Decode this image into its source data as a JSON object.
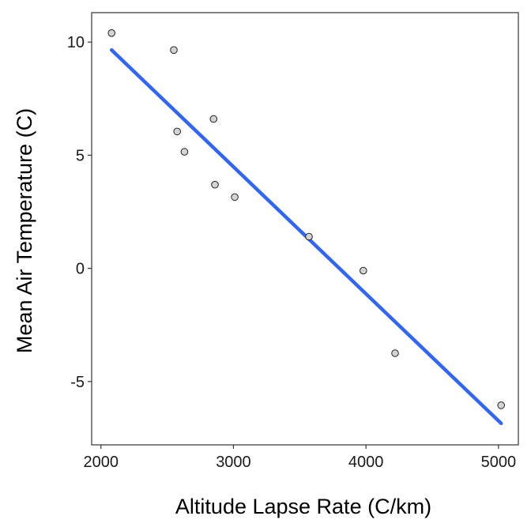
{
  "chart_data": {
    "type": "scatter",
    "title": "",
    "xlabel": "Altitude Lapse Rate (C/km)",
    "ylabel": "Mean Air Temperature (C)",
    "xlim": [
      1930,
      5150
    ],
    "ylim": [
      -7.8,
      11.3
    ],
    "x_ticks": [
      2000,
      3000,
      4000,
      5000
    ],
    "x_tick_labels": [
      "2000",
      "3000",
      "4000",
      "5000"
    ],
    "y_ticks": [
      -5,
      0,
      5,
      10
    ],
    "y_tick_labels": [
      "-5",
      "0",
      "5",
      "10"
    ],
    "grid": false,
    "legend": "none",
    "colors": {
      "point_fill": "#d3d3d3",
      "point_stroke": "#222222",
      "fit_line": "#3366ee"
    },
    "series": [
      {
        "kind": "points",
        "points": [
          {
            "x": 2080,
            "y": 10.4
          },
          {
            "x": 2550,
            "y": 9.65
          },
          {
            "x": 2575,
            "y": 6.05
          },
          {
            "x": 2630,
            "y": 5.15
          },
          {
            "x": 2850,
            "y": 6.6
          },
          {
            "x": 2860,
            "y": 3.7
          },
          {
            "x": 3010,
            "y": 3.15
          },
          {
            "x": 3570,
            "y": 1.4
          },
          {
            "x": 3980,
            "y": -0.1
          },
          {
            "x": 4220,
            "y": -3.75
          },
          {
            "x": 5020,
            "y": -6.05
          }
        ]
      },
      {
        "kind": "fit-line",
        "points": [
          {
            "x": 2080,
            "y": 9.65
          },
          {
            "x": 5020,
            "y": -6.85
          }
        ]
      }
    ]
  }
}
